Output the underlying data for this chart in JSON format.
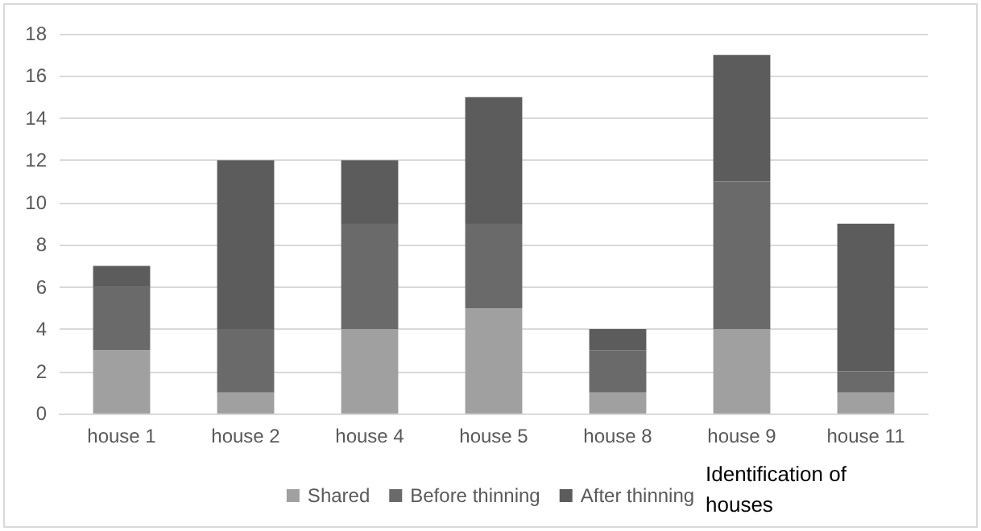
{
  "chart_data": {
    "type": "bar",
    "stacked": true,
    "categories": [
      "house 1",
      "house 2",
      "house 4",
      "house 5",
      "house 8",
      "house 9",
      "house 11"
    ],
    "series": [
      {
        "name": "Shared",
        "color": "#a0a0a0",
        "values": [
          3,
          1,
          4,
          5,
          1,
          4,
          1
        ]
      },
      {
        "name": "Before thinning",
        "color": "#6a6a6a",
        "values": [
          3,
          3,
          5,
          4,
          2,
          7,
          1
        ]
      },
      {
        "name": "After thinning",
        "color": "#5c5c5c",
        "values": [
          1,
          8,
          3,
          6,
          1,
          6,
          7
        ]
      }
    ],
    "xlabel": "Identification of houses",
    "ylim": [
      0,
      18
    ],
    "yticks": [
      0,
      2,
      4,
      6,
      8,
      10,
      12,
      14,
      16,
      18
    ],
    "grid": "y",
    "legend": "bottom"
  }
}
